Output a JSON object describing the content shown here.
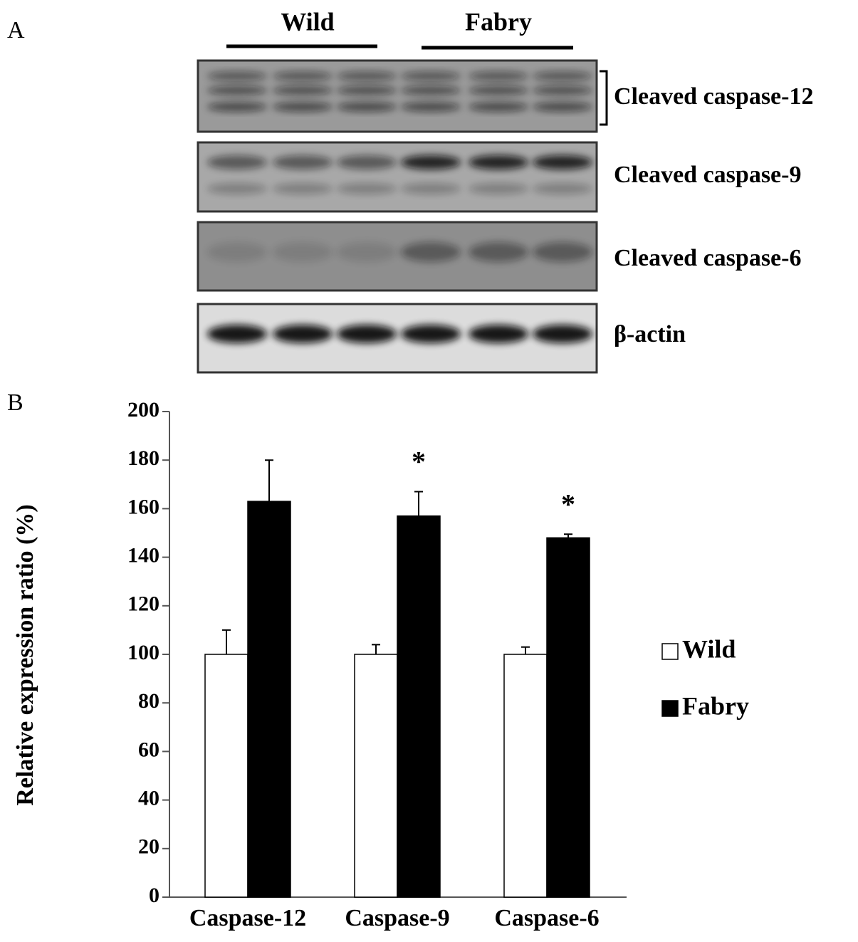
{
  "panel_a": {
    "label": "A",
    "groups": [
      "Wild",
      "Fabry"
    ],
    "bands": [
      "Cleaved caspase-12",
      "Cleaved caspase-9",
      "Cleaved caspase-6",
      "β-actin"
    ]
  },
  "chart_data": {
    "type": "bar",
    "panel_label": "B",
    "ylabel": "Relative expression ratio (%)",
    "categories": [
      "Caspase-12",
      "Caspase-9",
      "Caspase-6"
    ],
    "series": [
      {
        "name": "Wild",
        "color": "#ffffff",
        "values": [
          100,
          100,
          100
        ],
        "errors": [
          10,
          4,
          3
        ]
      },
      {
        "name": "Fabry",
        "color": "#000000",
        "values": [
          163,
          157,
          148
        ],
        "errors": [
          17,
          10,
          1.5
        ],
        "markers": [
          null,
          "*",
          "*"
        ]
      }
    ],
    "ylim": [
      0,
      200
    ],
    "yticks": [
      0,
      20,
      40,
      60,
      80,
      100,
      120,
      140,
      160,
      180,
      200
    ],
    "legend": "right",
    "grid": false
  }
}
